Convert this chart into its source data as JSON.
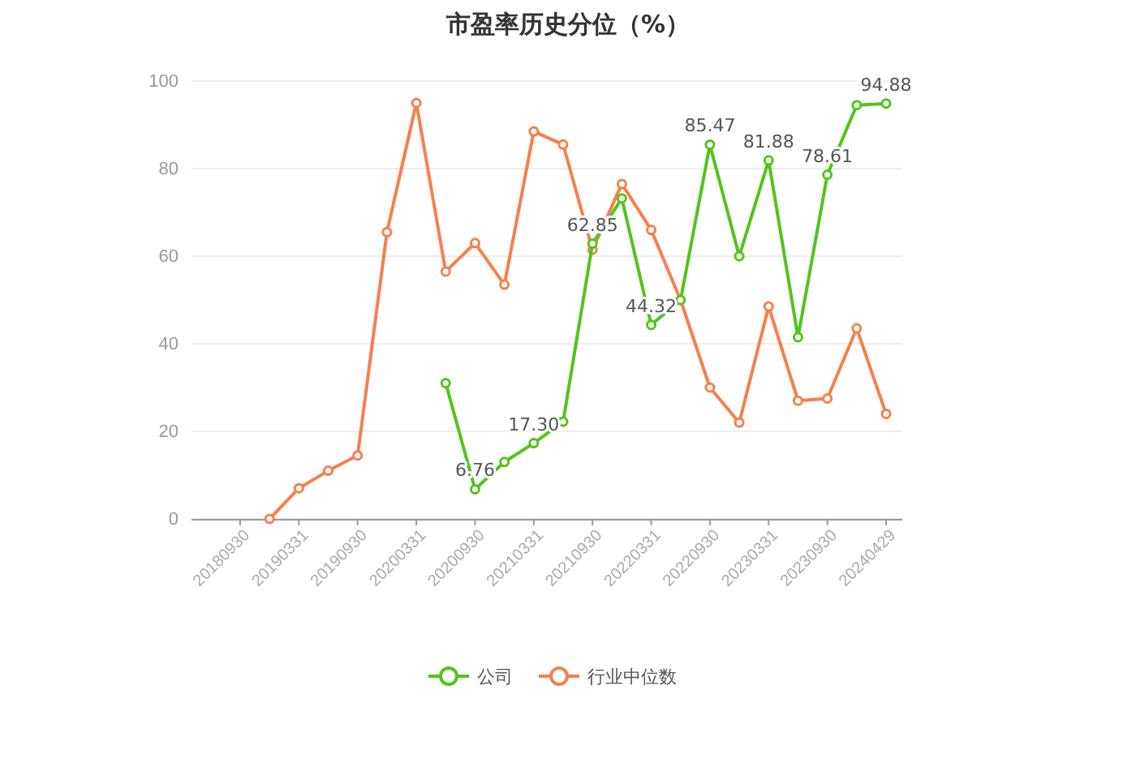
{
  "chart_data": {
    "type": "line",
    "title": "市盈率历史分位（%）",
    "categories": [
      "20180930",
      null,
      "20190331",
      null,
      "20190930",
      null,
      "20200331",
      null,
      "20200930",
      null,
      "20210331",
      null,
      "20210930",
      null,
      "20220331",
      null,
      "20220930",
      null,
      "20230331",
      null,
      "20230930",
      null,
      "20240429"
    ],
    "series": [
      {
        "name": "公司",
        "color": "#52c41a",
        "values": [
          null,
          null,
          null,
          null,
          null,
          null,
          null,
          31,
          6.76,
          13,
          17.3,
          22.2,
          62.85,
          73.2,
          44.32,
          50,
          85.47,
          60,
          81.88,
          41.5,
          78.61,
          94.5,
          94.88
        ],
        "value_labels": [
          null,
          null,
          null,
          null,
          null,
          null,
          null,
          null,
          "6.76",
          null,
          "17.30",
          null,
          "62.85",
          null,
          "44.32",
          null,
          "85.47",
          null,
          "81.88",
          null,
          "78.61",
          null,
          "94.88"
        ]
      },
      {
        "name": "行业中位数",
        "color": "#f5804d",
        "values": [
          null,
          0,
          7,
          11,
          14.5,
          65.5,
          95,
          56.5,
          63,
          53.5,
          88.5,
          85.5,
          61.5,
          76.5,
          66,
          50,
          30,
          22,
          48.5,
          27,
          27.5,
          43.5,
          24
        ]
      }
    ],
    "ylim": [
      0,
      100
    ],
    "yticks": [
      0,
      20,
      40,
      60,
      80,
      100
    ],
    "grid": "y",
    "legend": "bottom",
    "marker": "circle",
    "line_style": "solid"
  }
}
